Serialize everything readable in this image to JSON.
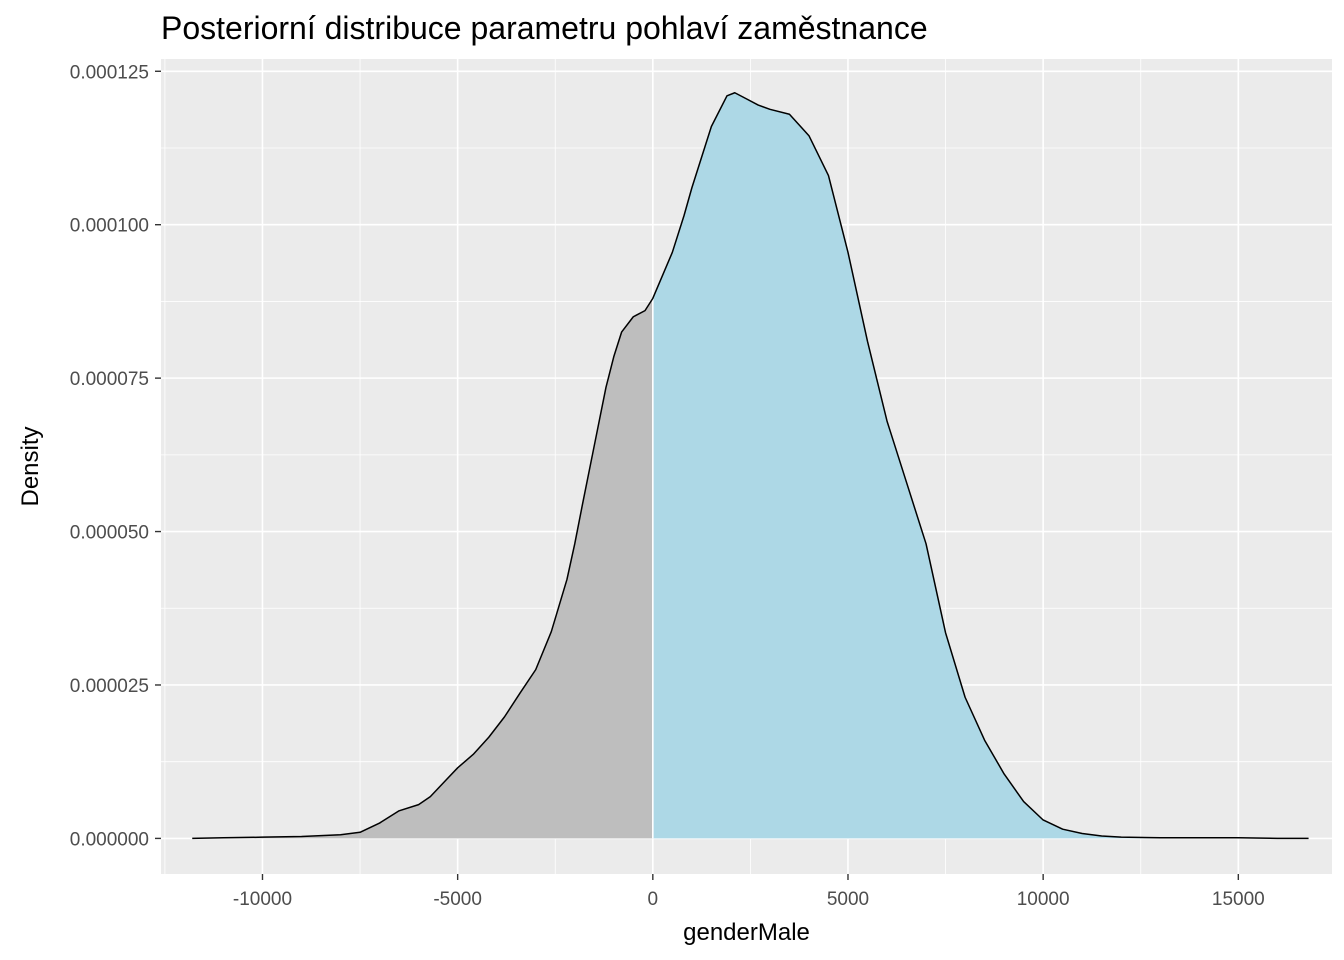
{
  "chart_data": {
    "type": "area",
    "title": "Posteriorní distribuce parametru pohlaví zaměstnance",
    "xlabel": "genderMale",
    "ylabel": "Density",
    "xlim": [
      -12600,
      17400
    ],
    "ylim": [
      -5.8e-06,
      0.000127
    ],
    "x_ticks": [
      -10000,
      -5000,
      0,
      5000,
      10000,
      15000
    ],
    "x_tick_labels": [
      "-10000",
      "-5000",
      "0",
      "5000",
      "10000",
      "15000"
    ],
    "y_ticks": [
      0,
      2.5e-05,
      5e-05,
      7.5e-05,
      0.0001,
      0.000125
    ],
    "y_tick_labels": [
      "0.000000",
      "0.000025",
      "0.000050",
      "0.000075",
      "0.000100",
      "0.000125"
    ],
    "grid": true,
    "legend": "none",
    "fill_split_x": 0,
    "fill_colors": {
      "below": "#bebebe",
      "above": "#add8e6"
    },
    "colors": {
      "panel": "#ebebeb",
      "grid": "#ffffff",
      "line": "#000000",
      "split_line": "#ffffff"
    },
    "series": [
      {
        "x": [
          -11800,
          -11000,
          -10000,
          -9000,
          -8000,
          -7500,
          -7000,
          -6500,
          -6000,
          -5700,
          -5300,
          -5000,
          -4600,
          -4200,
          -3800,
          -3400,
          -3000,
          -2600,
          -2200,
          -2000,
          -1800,
          -1500,
          -1200,
          -1000,
          -800,
          -500,
          -200,
          0,
          500,
          800,
          1000,
          1500,
          1900,
          2100,
          2400,
          2700,
          3000,
          3500,
          4000,
          4500,
          5000,
          5500,
          6000,
          6500,
          7000,
          7500,
          8000,
          8500,
          9000,
          9500,
          10000,
          10500,
          11000,
          11500,
          12000,
          13000,
          14000,
          15000,
          16000,
          16800
        ],
        "y": [
          0,
          1e-07,
          2e-07,
          3e-07,
          6e-07,
          1e-06,
          2.5e-06,
          4.5e-06,
          5.5e-06,
          6.8e-06,
          9.5e-06,
          1.15e-05,
          1.37e-05,
          1.65e-05,
          1.98e-05,
          2.37e-05,
          2.75e-05,
          3.37e-05,
          4.22e-05,
          4.8e-05,
          5.45e-05,
          6.4e-05,
          7.35e-05,
          7.85e-05,
          8.25e-05,
          8.5e-05,
          8.6e-05,
          8.8e-05,
          9.55e-05,
          0.0001015,
          0.000106,
          0.000116,
          0.000121,
          0.0001215,
          0.0001205,
          0.0001195,
          0.0001188,
          0.000118,
          0.0001145,
          0.000108,
          9.55e-05,
          8.1e-05,
          6.8e-05,
          5.8e-05,
          4.8e-05,
          3.35e-05,
          2.3e-05,
          1.6e-05,
          1.05e-05,
          6e-06,
          3e-06,
          1.5e-06,
          8e-07,
          4e-07,
          2e-07,
          1e-07,
          1e-07,
          1e-07,
          0,
          0
        ]
      }
    ]
  }
}
